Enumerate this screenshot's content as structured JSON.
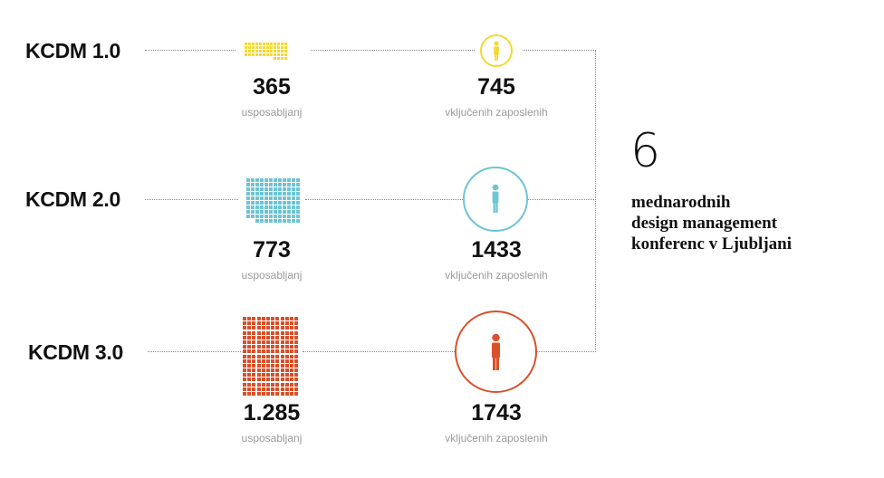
{
  "rows": [
    {
      "label": "KCDM 1.0",
      "trainings": "365",
      "trainings_label": "usposabljanj",
      "employees": "745",
      "employees_label": "vključenih zaposlenih",
      "color": "#f5d832"
    },
    {
      "label": "KCDM 2.0",
      "trainings": "773",
      "trainings_label": "usposabljanj",
      "employees": "1433",
      "employees_label": "vključenih zaposlenih",
      "color": "#6ec5d4"
    },
    {
      "label": "KCDM 3.0",
      "trainings": "1.285",
      "trainings_label": "usposabljanj",
      "employees": "1743",
      "employees_label": "vključenih zaposlenih",
      "color": "#d9502a"
    }
  ],
  "summary": {
    "count": "6",
    "line1": "mednarodnih",
    "line2": "design management",
    "line3": "konferenc v Ljubljani"
  },
  "icons": {
    "person": "person-icon",
    "grid": "square-grid-icon"
  }
}
